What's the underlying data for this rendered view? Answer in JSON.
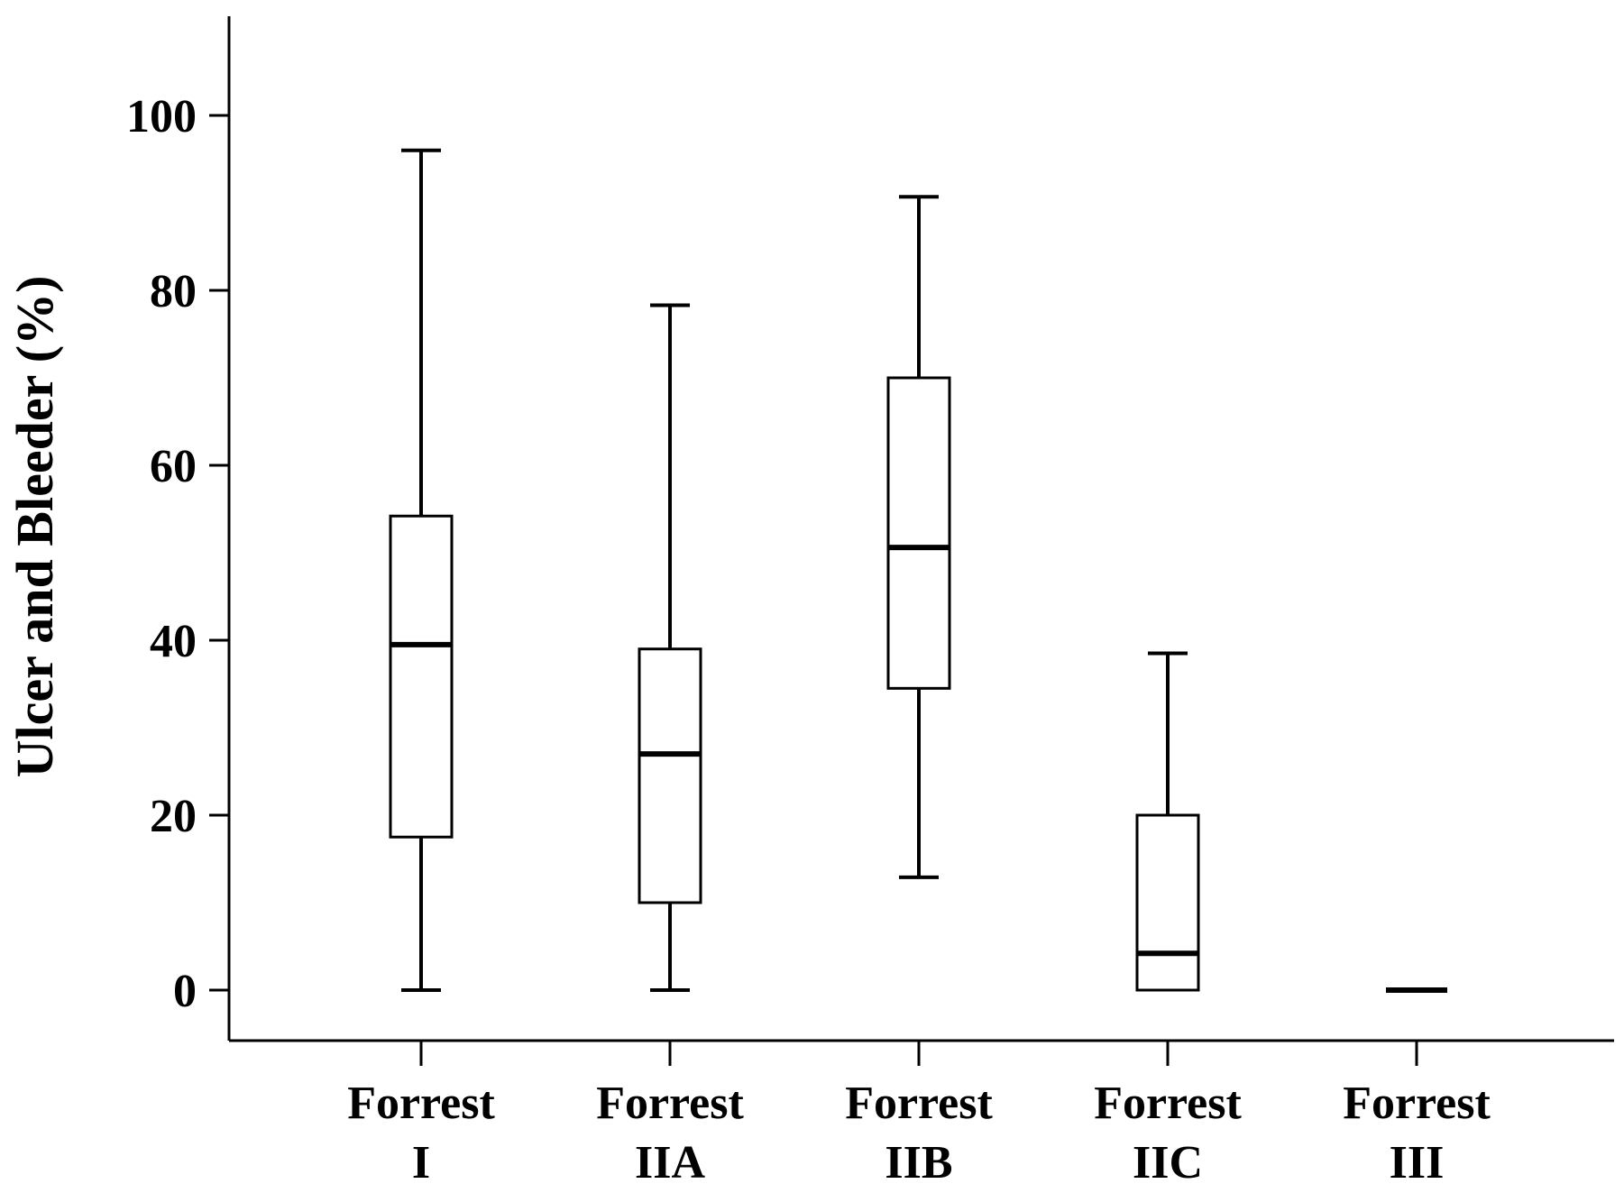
{
  "colors": {
    "line": "#000000",
    "box_fill": "#ffffff",
    "background": "#ffffff"
  },
  "chart_data": {
    "type": "box",
    "title": "",
    "xlabel": "",
    "ylabel": "Ulcer and Bleeder (%)",
    "ylim": [
      -6,
      112
    ],
    "yticks": [
      0,
      20,
      40,
      60,
      80,
      100
    ],
    "grid": false,
    "legend": "none",
    "categories": [
      {
        "line1": "Forrest",
        "line2": "I"
      },
      {
        "line1": "Forrest",
        "line2": "IIA"
      },
      {
        "line1": "Forrest",
        "line2": "IIB"
      },
      {
        "line1": "Forrest",
        "line2": "IIC"
      },
      {
        "line1": "Forrest",
        "line2": "III"
      }
    ],
    "boxes": [
      {
        "min": 0,
        "q1": 17.5,
        "median": 39.5,
        "q3": 54.2,
        "max": 96
      },
      {
        "min": 0,
        "q1": 10,
        "median": 27,
        "q3": 39,
        "max": 78.3
      },
      {
        "min": 12.9,
        "q1": 34.5,
        "median": 50.6,
        "q3": 70,
        "max": 90.7
      },
      {
        "min": 0,
        "q1": 0,
        "median": 4.2,
        "q3": 20,
        "max": 38.5
      },
      {
        "min": 0,
        "q1": 0,
        "median": 0,
        "q3": 0,
        "max": 0
      }
    ]
  }
}
